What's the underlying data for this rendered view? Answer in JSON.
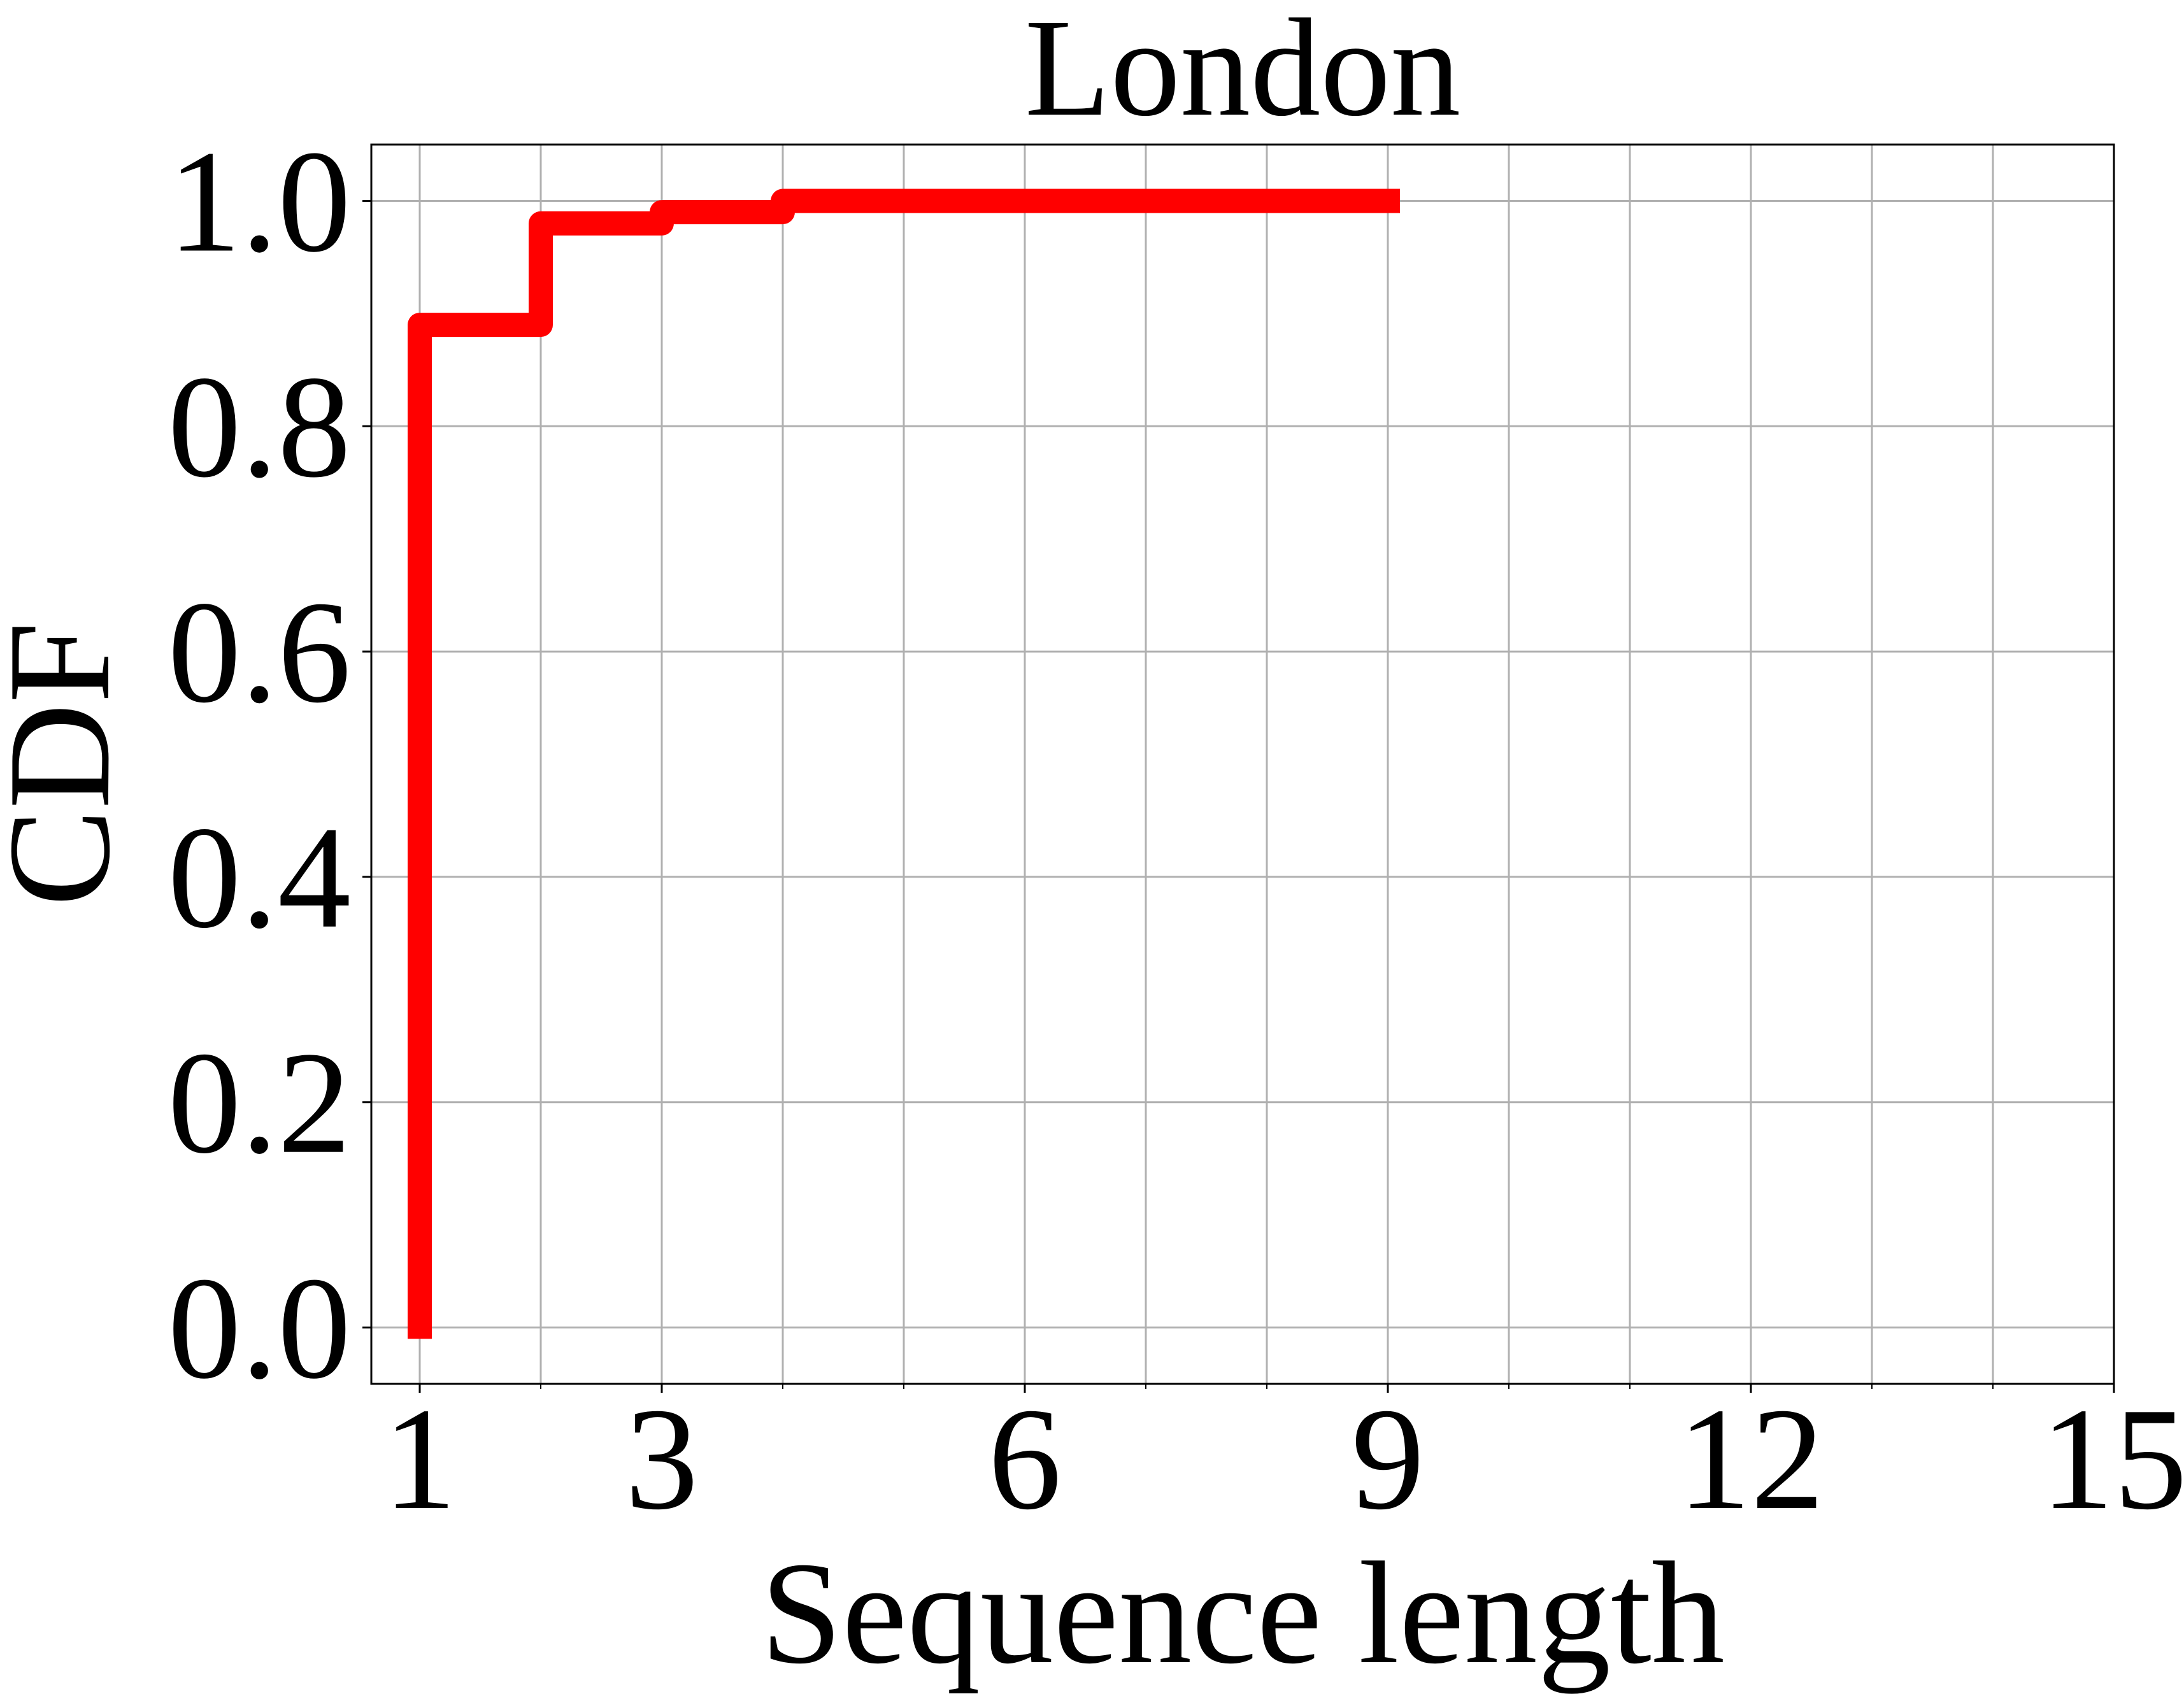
{
  "chart_data": {
    "type": "line",
    "title": "London",
    "xlabel": "Sequence length",
    "ylabel": "CDF",
    "xlim": [
      0.6,
      15
    ],
    "ylim": [
      -0.05,
      1.05
    ],
    "xticks": [
      1,
      3,
      6,
      9,
      12,
      15
    ],
    "xtick_labels": [
      "1",
      "3",
      "6",
      "9",
      "12",
      "15"
    ],
    "x_minor_grid": [
      2,
      4,
      5,
      7,
      8,
      10,
      11,
      13,
      14
    ],
    "yticks": [
      0.0,
      0.2,
      0.4,
      0.6,
      0.8,
      1.0
    ],
    "ytick_labels": [
      "0.0",
      "0.2",
      "0.4",
      "0.6",
      "0.8",
      "1.0"
    ],
    "grid": true,
    "legend": "none",
    "line_style": "step",
    "series": [
      {
        "color": "#ff0000",
        "x": [
          1,
          1,
          2,
          2,
          3,
          3,
          4,
          4,
          9.1
        ],
        "y": [
          -0.01,
          0.89,
          0.89,
          0.98,
          0.98,
          0.99,
          0.99,
          1.0,
          1.0
        ]
      }
    ]
  }
}
